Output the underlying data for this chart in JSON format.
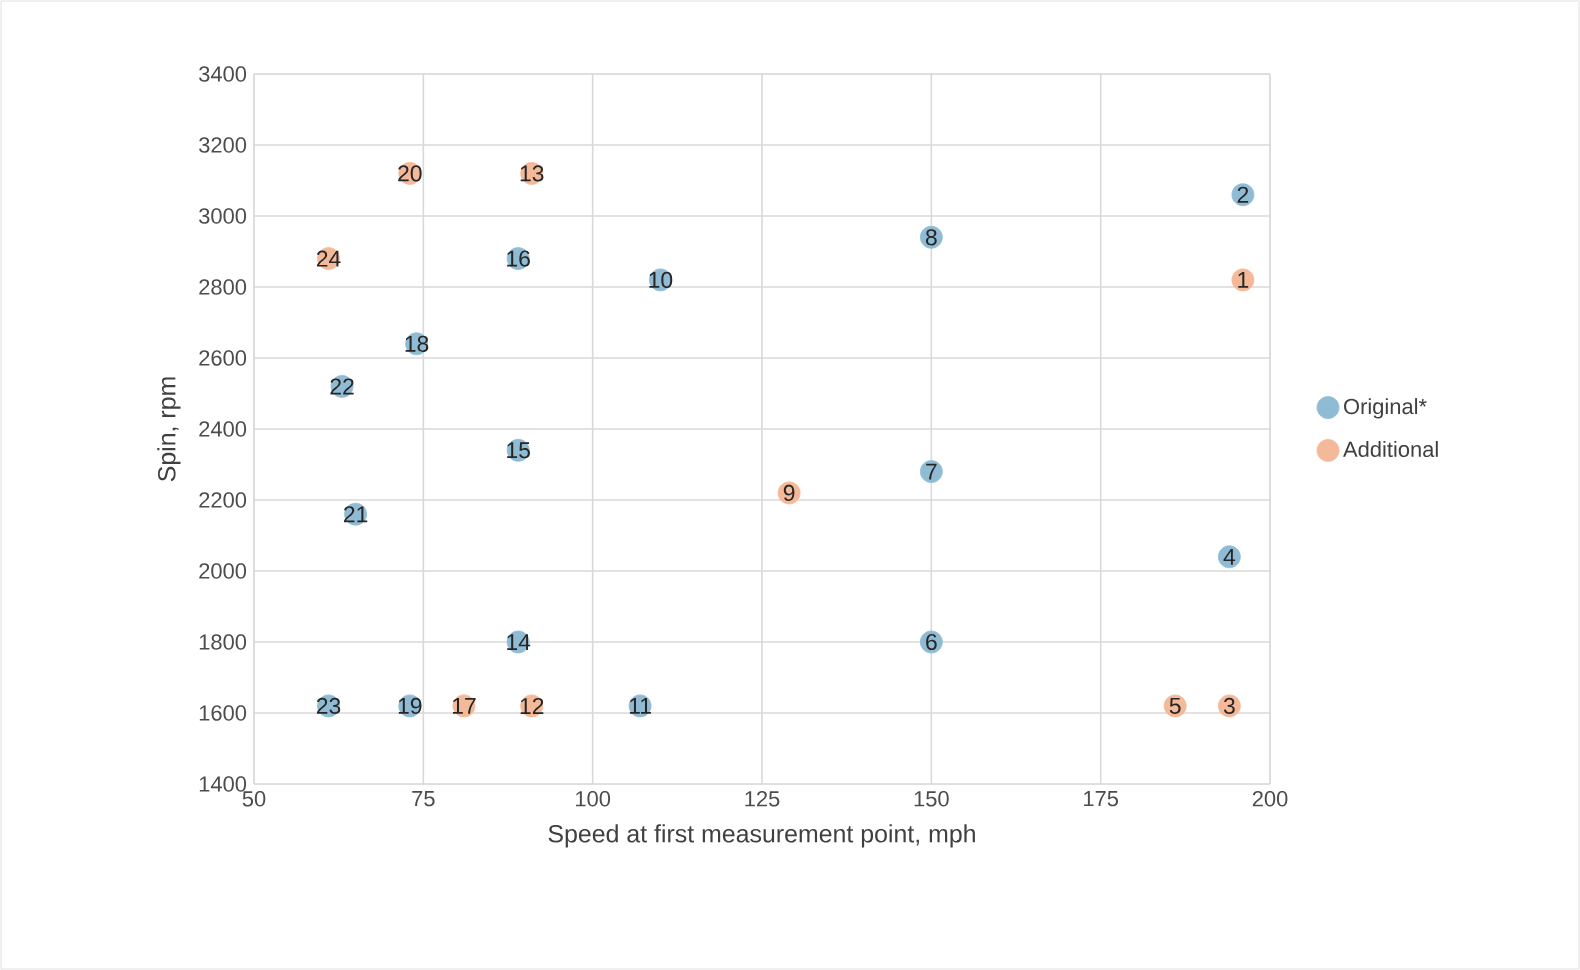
{
  "chart_data": {
    "type": "scatter",
    "xlabel": "Speed at first measurement point, mph",
    "ylabel": "Spin, rpm",
    "xlim": [
      50,
      200
    ],
    "xticks": [
      50,
      75,
      100,
      125,
      150,
      175,
      200
    ],
    "ylim": [
      1400,
      3400
    ],
    "yticks": [
      1400,
      1600,
      1800,
      2000,
      2200,
      2400,
      2600,
      2800,
      3000,
      3200,
      3400
    ],
    "grid": true,
    "legend": "right",
    "marker": "circle",
    "series": [
      {
        "name": "Original*",
        "color": "#8fbcd4",
        "x": [
          196,
          194,
          150,
          150,
          150,
          110,
          107,
          89,
          89,
          89,
          74,
          73,
          65,
          63,
          61
        ],
        "values": [
          3060,
          2040,
          1800,
          2280,
          2940,
          2820,
          1620,
          1800,
          2340,
          2880,
          2640,
          1620,
          2160,
          2520,
          1620
        ]
      },
      {
        "name": "Additional",
        "color": "#f4b998",
        "x": [
          196,
          194,
          186,
          129,
          91,
          91,
          81,
          73,
          61
        ],
        "values": [
          2820,
          1620,
          1620,
          2220,
          1620,
          3120,
          1620,
          3120,
          2880
        ]
      }
    ],
    "annotations": [
      {
        "text": "1",
        "x": 196,
        "y": 2820
      },
      {
        "text": "2",
        "x": 196,
        "y": 3060
      },
      {
        "text": "3",
        "x": 194,
        "y": 1620
      },
      {
        "text": "4",
        "x": 194,
        "y": 2040
      },
      {
        "text": "5",
        "x": 186,
        "y": 1620
      },
      {
        "text": "6",
        "x": 150,
        "y": 1800
      },
      {
        "text": "7",
        "x": 150,
        "y": 2280
      },
      {
        "text": "8",
        "x": 150,
        "y": 2940
      },
      {
        "text": "9",
        "x": 129,
        "y": 2220
      },
      {
        "text": "10",
        "x": 110,
        "y": 2820
      },
      {
        "text": "11",
        "x": 107,
        "y": 1620
      },
      {
        "text": "12",
        "x": 91,
        "y": 1620
      },
      {
        "text": "13",
        "x": 91,
        "y": 3120
      },
      {
        "text": "14",
        "x": 89,
        "y": 1800
      },
      {
        "text": "15",
        "x": 89,
        "y": 2340
      },
      {
        "text": "16",
        "x": 89,
        "y": 2880
      },
      {
        "text": "17",
        "x": 81,
        "y": 1620
      },
      {
        "text": "18",
        "x": 74,
        "y": 2640
      },
      {
        "text": "19",
        "x": 73,
        "y": 1620
      },
      {
        "text": "20",
        "x": 73,
        "y": 3120
      },
      {
        "text": "21",
        "x": 65,
        "y": 2160
      },
      {
        "text": "22",
        "x": 63,
        "y": 2520
      },
      {
        "text": "23",
        "x": 61,
        "y": 1620
      },
      {
        "text": "24",
        "x": 61,
        "y": 2880
      }
    ]
  }
}
